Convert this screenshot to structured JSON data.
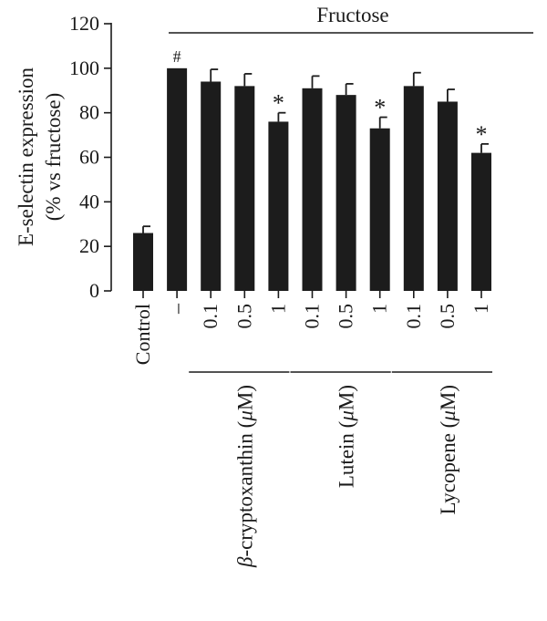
{
  "chart_data": {
    "type": "bar",
    "ylabel_line1": "E-selectin expression",
    "ylabel_line2": "(% vs fructose)",
    "ylim": [
      0,
      120
    ],
    "yticks": [
      0,
      20,
      40,
      60,
      80,
      100,
      120
    ],
    "categories": [
      "Control",
      "–",
      "0.1",
      "0.5",
      "1",
      "0.1",
      "0.5",
      "1",
      "0.1",
      "0.5",
      "1"
    ],
    "values": [
      26,
      100,
      94,
      92,
      76,
      91,
      88,
      73,
      92,
      85,
      62
    ],
    "errors": [
      3,
      0,
      5.5,
      5.5,
      4,
      5.5,
      5,
      5,
      6,
      5.5,
      4
    ],
    "annotations": [
      "",
      "#",
      "",
      "",
      "*",
      "",
      "",
      "*",
      "",
      "",
      "*"
    ],
    "top_group_label": "Fructose",
    "groups": [
      {
        "label_main": "β",
        "label_rest": "-cryptoxanthin (",
        "unit": "μ",
        "label_end": "M)",
        "first": 2,
        "last": 4
      },
      {
        "label_main": "",
        "label_rest": "Lutein (",
        "unit": "μ",
        "label_end": "M)",
        "first": 5,
        "last": 7
      },
      {
        "label_main": "",
        "label_rest": "Lycopene (",
        "unit": "μ",
        "label_end": "M)",
        "first": 8,
        "last": 10
      }
    ],
    "bar_color": "#1c1c1c",
    "grid": false,
    "legend": "none"
  }
}
